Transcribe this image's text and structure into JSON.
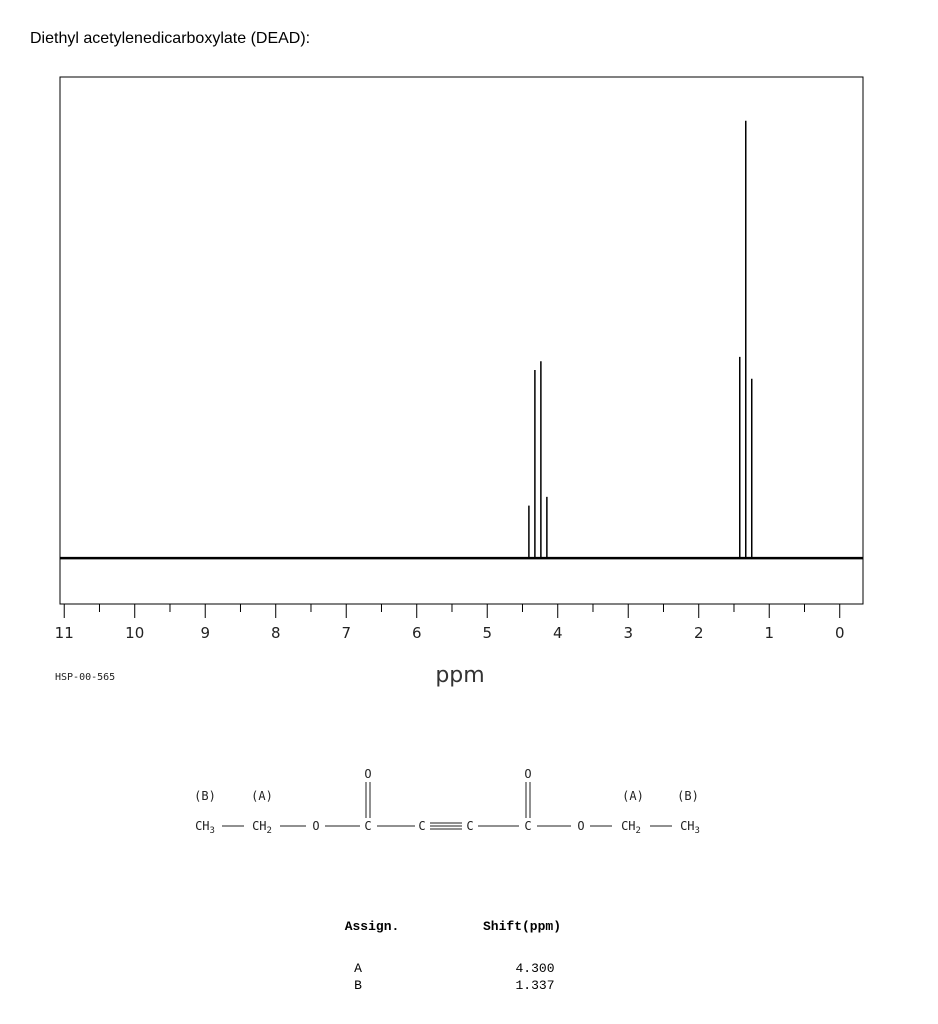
{
  "title": "Diethyl acetylenedicarboxylate (DEAD):",
  "chart_data": {
    "type": "nmr",
    "x_label": "ppm",
    "code": "HSP-00-565",
    "x": [
      4.409,
      4.324,
      4.239,
      4.154,
      1.418,
      1.333,
      1.248
    ],
    "values": [
      12,
      43,
      45,
      14,
      46,
      100,
      41
    ],
    "color": "#000000",
    "xlim": [
      11.06,
      -0.33
    ],
    "ylim": [
      -10.5,
      110
    ],
    "xticks": [
      11,
      10,
      9,
      8,
      7,
      6,
      5,
      4,
      3,
      2,
      1,
      0
    ]
  },
  "structure": {
    "labels": [
      "(B)",
      "(A)",
      "(A)",
      "(B)"
    ],
    "atoms": [
      {
        "symbol": "CH",
        "sub": "3"
      },
      {
        "symbol": "CH",
        "sub": "2"
      },
      {
        "symbol": "O"
      },
      {
        "symbol": "C"
      },
      {
        "symbol": "C"
      },
      {
        "symbol": "C"
      },
      {
        "symbol": "C"
      },
      {
        "symbol": "O"
      },
      {
        "symbol": "CH",
        "sub": "2"
      },
      {
        "symbol": "CH",
        "sub": "3"
      }
    ],
    "carbonyl_oxygens": [
      "O",
      "O"
    ]
  },
  "table": {
    "header": [
      "Assign.",
      "Shift(ppm)"
    ],
    "rows": [
      [
        "A",
        "4.300"
      ],
      [
        "B",
        "1.337"
      ]
    ]
  }
}
